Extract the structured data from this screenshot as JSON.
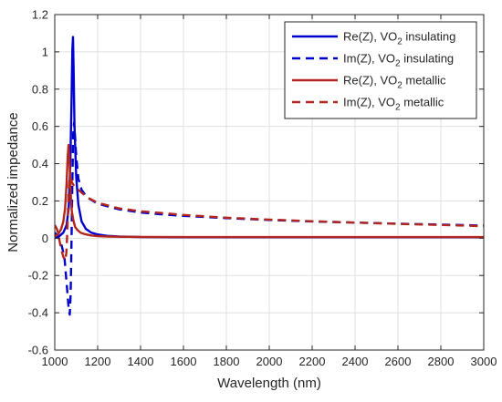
{
  "chart_data": {
    "type": "line",
    "xlabel": "Wavelength (nm)",
    "ylabel": "Normalized impedance",
    "xlim": [
      1000,
      3000
    ],
    "ylim": [
      -0.6,
      1.2
    ],
    "xticks": [
      1000,
      1200,
      1400,
      1600,
      1800,
      2000,
      2200,
      2400,
      2600,
      2800,
      3000
    ],
    "yticks": [
      -0.6,
      -0.4,
      -0.2,
      0,
      0.2,
      0.4,
      0.6,
      0.8,
      1,
      1.2
    ],
    "xtick_labels": [
      "1000",
      "1200",
      "1400",
      "1600",
      "1800",
      "2000",
      "2200",
      "2400",
      "2600",
      "2800",
      "3000"
    ],
    "ytick_labels": [
      "-0.6",
      "-0.4",
      "-0.2",
      "0",
      "0.2",
      "0.4",
      "0.6",
      "0.8",
      "1",
      "1.2"
    ],
    "grid": true,
    "legend_position": "top-right",
    "series": [
      {
        "name": "Re(Z), VO2 insulating",
        "legend_main": "Re(Z), VO",
        "legend_sub": "2",
        "legend_tail": " insulating",
        "color": "#0000cc",
        "dash": "solid",
        "x": [
          1000,
          1020,
          1040,
          1055,
          1065,
          1072,
          1078,
          1082,
          1085,
          1088,
          1092,
          1100,
          1110,
          1125,
          1145,
          1170,
          1200,
          1250,
          1300,
          1400,
          1600,
          2000,
          2500,
          3000
        ],
        "y": [
          0.0,
          0.01,
          0.03,
          0.07,
          0.16,
          0.38,
          0.72,
          1.01,
          1.08,
          0.9,
          0.6,
          0.33,
          0.18,
          0.09,
          0.05,
          0.03,
          0.02,
          0.012,
          0.009,
          0.006,
          0.005,
          0.005,
          0.005,
          0.005
        ]
      },
      {
        "name": "Im(Z), VO2 insulating",
        "legend_main": "Im(Z), VO",
        "legend_sub": "2",
        "legend_tail": " insulating",
        "color": "#0000cc",
        "dash": "dashed",
        "x": [
          1000,
          1015,
          1030,
          1045,
          1058,
          1065,
          1070,
          1074,
          1078,
          1082,
          1086,
          1090,
          1095,
          1100,
          1110,
          1125,
          1150,
          1200,
          1300,
          1400,
          1500,
          1600,
          1800,
          2000,
          2200,
          2400,
          2600,
          2800,
          3000
        ],
        "y": [
          0.03,
          0.01,
          -0.03,
          -0.1,
          -0.28,
          -0.38,
          -0.41,
          -0.3,
          -0.02,
          0.3,
          0.56,
          0.62,
          0.54,
          0.44,
          0.32,
          0.26,
          0.22,
          0.185,
          0.155,
          0.138,
          0.128,
          0.12,
          0.108,
          0.098,
          0.09,
          0.084,
          0.078,
          0.073,
          0.068
        ]
      },
      {
        "name": "Re(Z), VO2 metallic",
        "legend_main": "Re(Z), VO",
        "legend_sub": "2",
        "legend_tail": " metallic",
        "color": "#b3261e",
        "dash": "solid",
        "x": [
          1000,
          1015,
          1030,
          1040,
          1048,
          1055,
          1060,
          1064,
          1068,
          1072,
          1076,
          1080,
          1088,
          1095,
          1105,
          1120,
          1140,
          1170,
          1200,
          1250,
          1300,
          1400,
          1600,
          2000,
          2500,
          3000
        ],
        "y": [
          0.01,
          0.02,
          0.05,
          0.09,
          0.16,
          0.29,
          0.43,
          0.5,
          0.44,
          0.31,
          0.2,
          0.14,
          0.09,
          0.06,
          0.045,
          0.03,
          0.022,
          0.015,
          0.011,
          0.009,
          0.008,
          0.007,
          0.006,
          0.006,
          0.006,
          0.006
        ]
      },
      {
        "name": "Im(Z), VO2 metallic",
        "legend_main": "Im(Z), VO",
        "legend_sub": "2",
        "legend_tail": " metallic",
        "color": "#b3261e",
        "dash": "dashed",
        "x": [
          1000,
          1010,
          1020,
          1030,
          1040,
          1048,
          1054,
          1058,
          1062,
          1066,
          1070,
          1075,
          1080,
          1090,
          1100,
          1110,
          1130,
          1150,
          1200,
          1300,
          1400,
          1500,
          1600,
          1800,
          2000,
          2200,
          2400,
          2600,
          2800,
          3000
        ],
        "y": [
          0.07,
          0.05,
          0.0,
          -0.06,
          -0.1,
          -0.12,
          -0.08,
          0.02,
          0.16,
          0.28,
          0.33,
          0.32,
          0.3,
          0.28,
          0.27,
          0.26,
          0.24,
          0.22,
          0.19,
          0.16,
          0.145,
          0.135,
          0.125,
          0.11,
          0.1,
          0.091,
          0.084,
          0.077,
          0.071,
          0.065
        ]
      }
    ]
  }
}
